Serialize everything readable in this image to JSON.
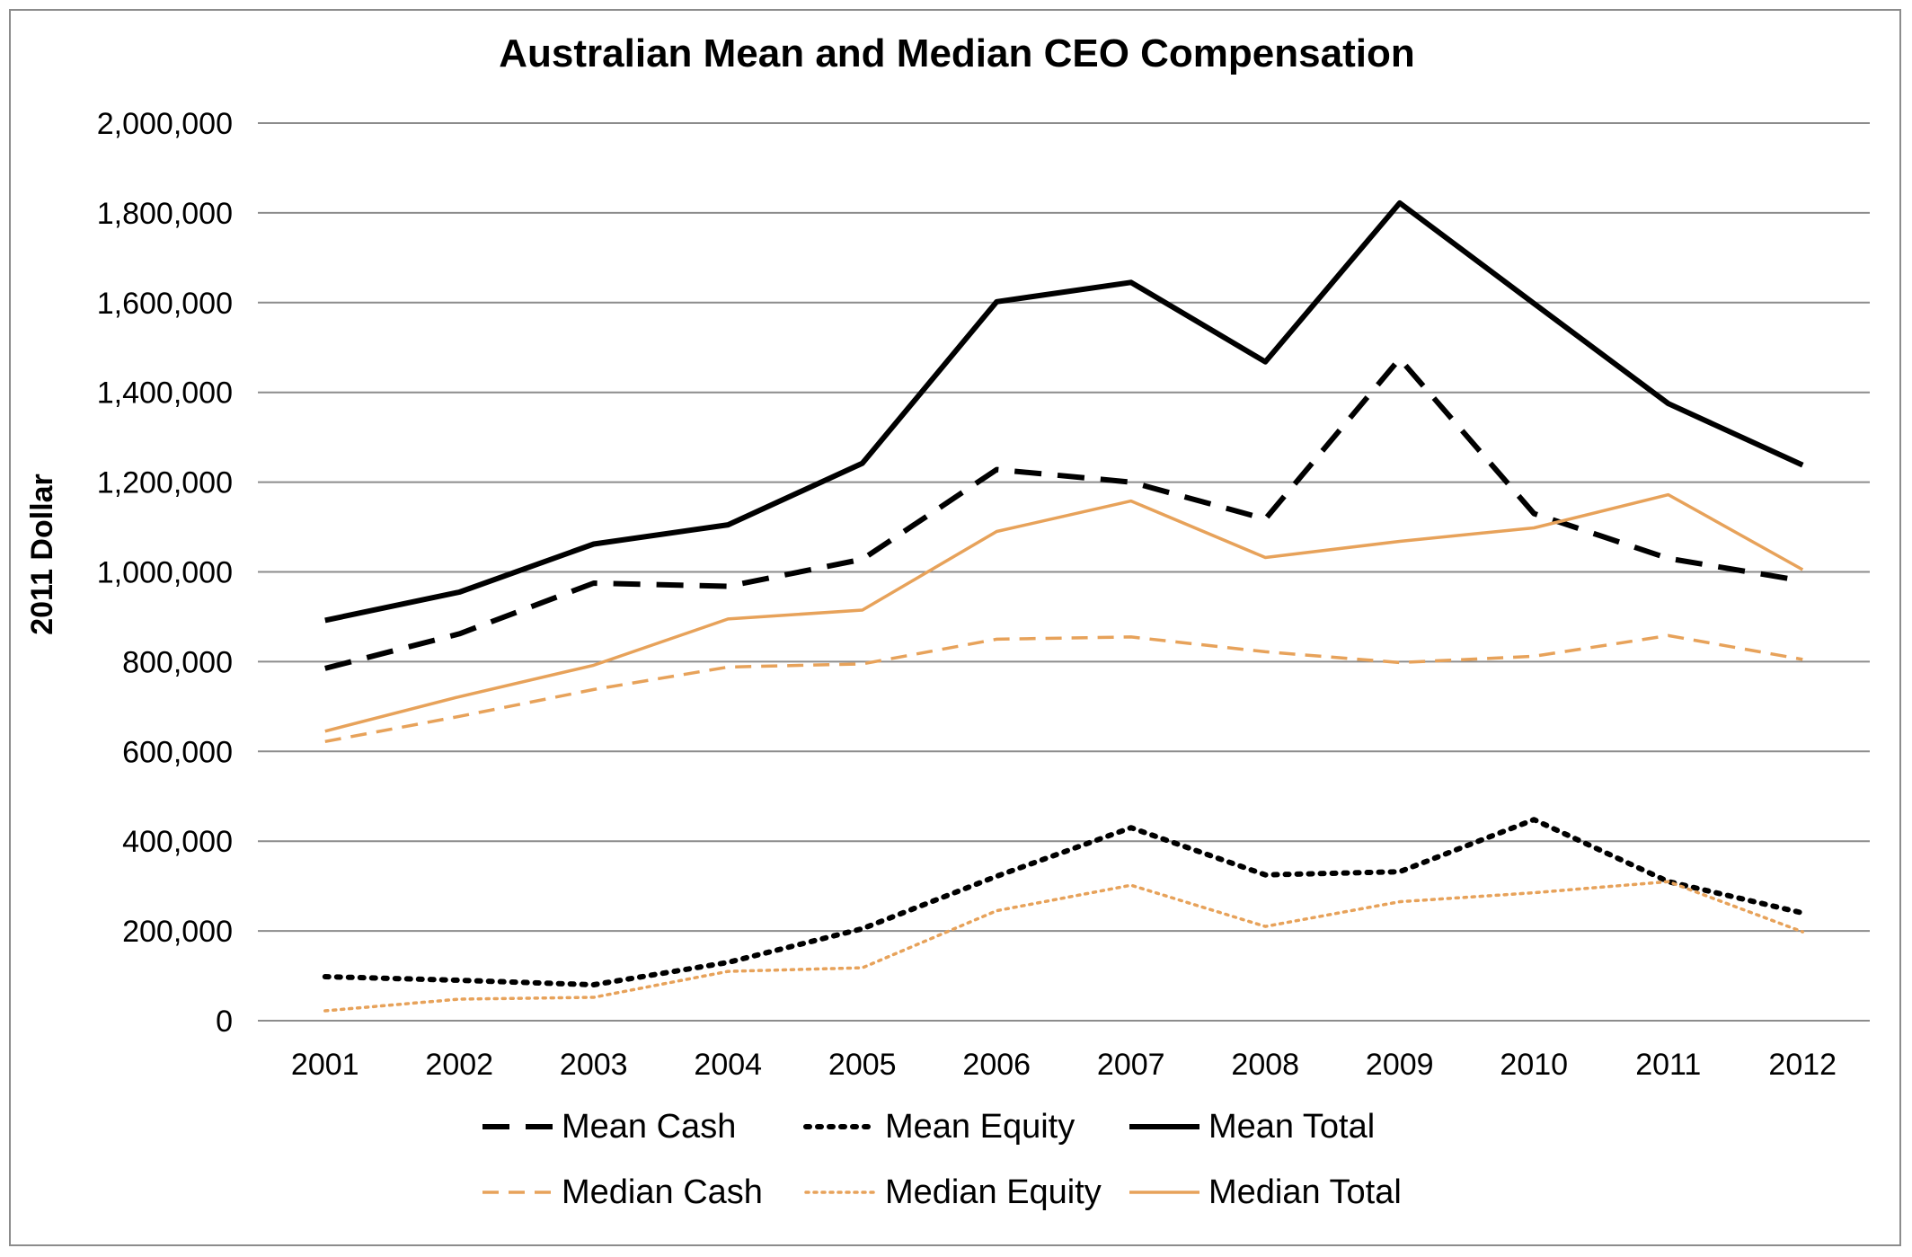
{
  "chart_data": {
    "type": "line",
    "title": "Australian Mean and Median CEO Compensation",
    "xlabel": "",
    "ylabel": "2011 Dollar",
    "categories": [
      "2001",
      "2002",
      "2003",
      "2004",
      "2005",
      "2006",
      "2007",
      "2008",
      "2009",
      "2010",
      "2011",
      "2012"
    ],
    "ylim": [
      0,
      2000000
    ],
    "yticks": [
      0,
      200000,
      400000,
      600000,
      800000,
      1000000,
      1200000,
      1400000,
      1600000,
      1800000,
      2000000
    ],
    "ytick_labels": [
      "0",
      "200,000",
      "400,000",
      "600,000",
      "800,000",
      "1,000,000",
      "1,200,000",
      "1,400,000",
      "1,600,000",
      "1,800,000",
      "2,000,000"
    ],
    "grid": true,
    "legend_position": "bottom",
    "series": [
      {
        "name": "Mean Cash",
        "color": "#000000",
        "style": "dashed",
        "weight": "heavy",
        "values": [
          785000,
          862000,
          975000,
          968000,
          1028000,
          1228000,
          1200000,
          1118000,
          1475000,
          1130000,
          1030000,
          980000
        ]
      },
      {
        "name": "Mean Equity",
        "color": "#000000",
        "style": "dotted",
        "weight": "heavy",
        "values": [
          98000,
          90000,
          80000,
          130000,
          205000,
          322000,
          430000,
          325000,
          332000,
          448000,
          310000,
          240000
        ]
      },
      {
        "name": "Mean Total",
        "color": "#000000",
        "style": "solid",
        "weight": "heavy",
        "values": [
          892000,
          955000,
          1062000,
          1105000,
          1242000,
          1602000,
          1645000,
          1468000,
          1822000,
          1598000,
          1375000,
          1238000
        ]
      },
      {
        "name": "Median Cash",
        "color": "#e7a25a",
        "style": "dashed",
        "weight": "light",
        "values": [
          622000,
          678000,
          738000,
          788000,
          795000,
          850000,
          855000,
          822000,
          798000,
          812000,
          858000,
          805000
        ]
      },
      {
        "name": "Median Equity",
        "color": "#e7a25a",
        "style": "dotted",
        "weight": "light",
        "values": [
          22000,
          48000,
          52000,
          110000,
          118000,
          245000,
          302000,
          210000,
          265000,
          285000,
          310000,
          198000
        ]
      },
      {
        "name": "Median Total",
        "color": "#e7a25a",
        "style": "solid",
        "weight": "light",
        "values": [
          645000,
          722000,
          792000,
          895000,
          915000,
          1090000,
          1158000,
          1032000,
          1068000,
          1098000,
          1172000,
          1005000
        ]
      }
    ]
  }
}
